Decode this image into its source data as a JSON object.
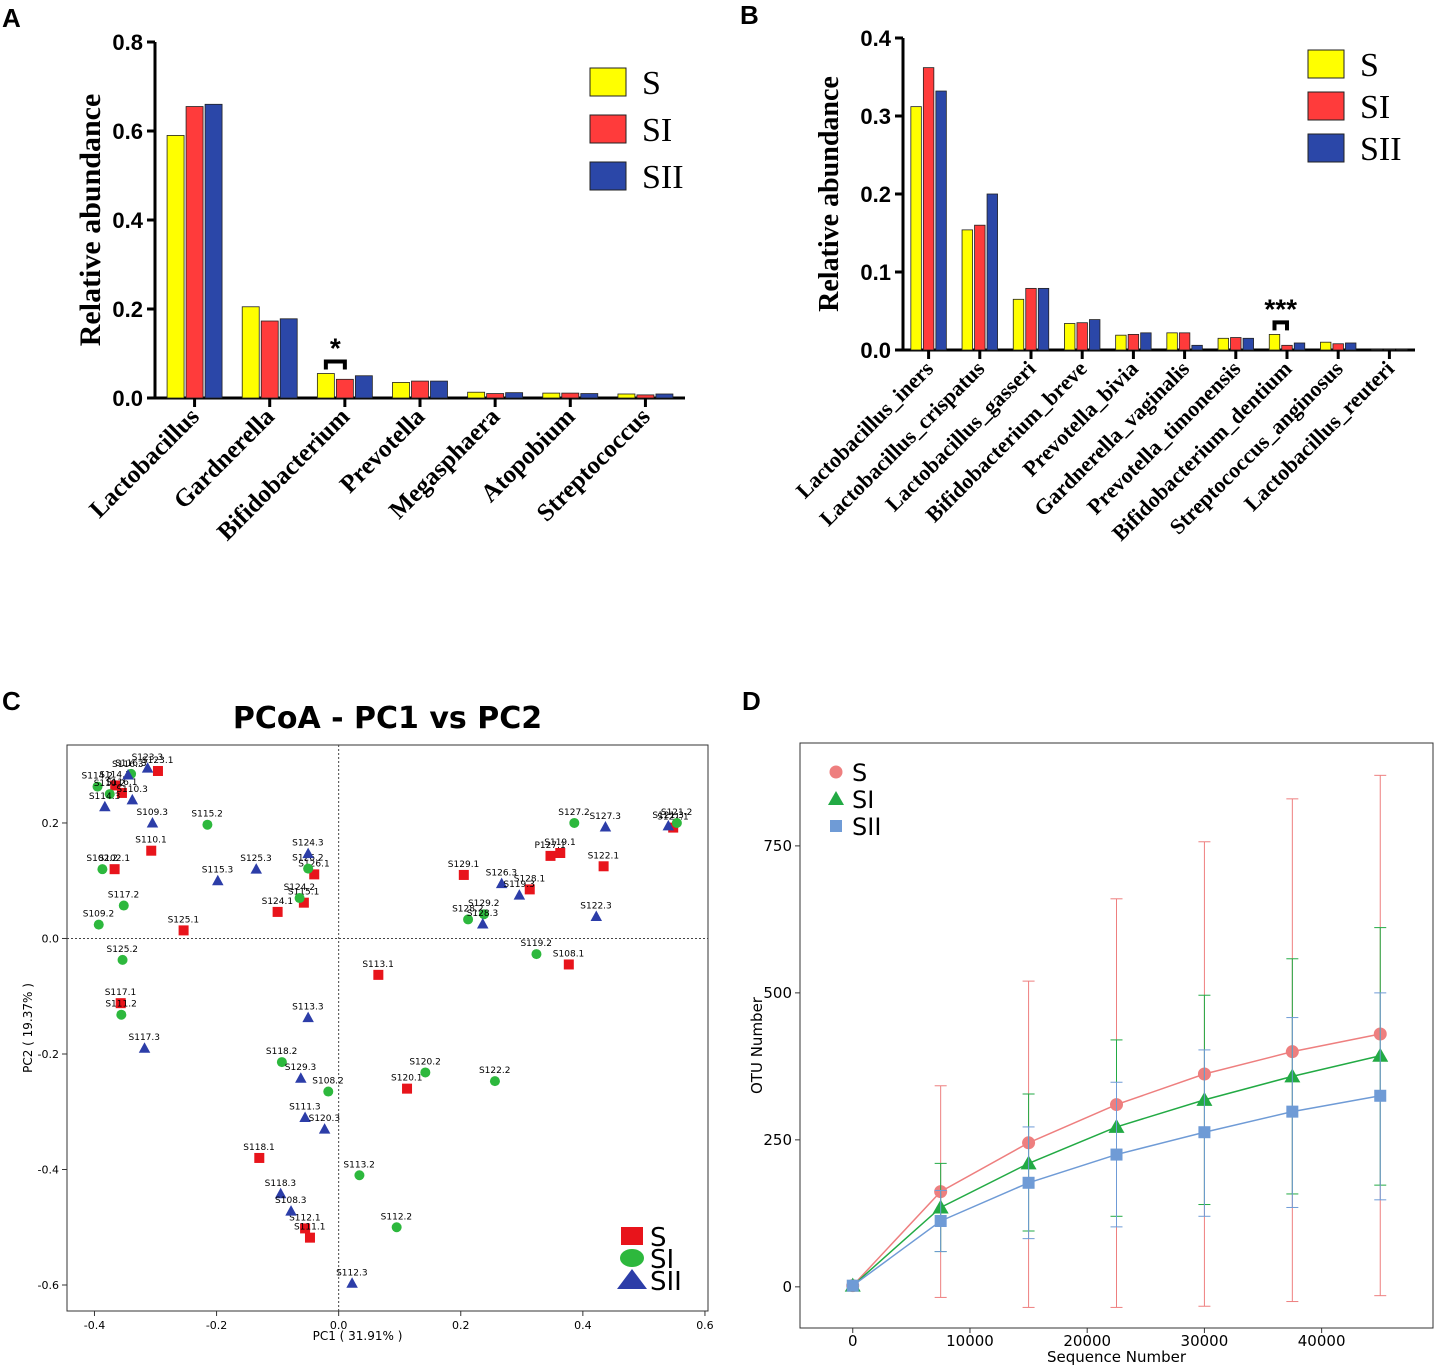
{
  "panels": {
    "A": "A",
    "B": "B",
    "C": "C",
    "D": "D"
  },
  "colors": {
    "S": "#ffff00",
    "SI": "#ff3b3b",
    "SII": "#2b47a8",
    "pcoa_S": "#e8141b",
    "pcoa_SI": "#2db83d",
    "pcoa_SII": "#2c3da8",
    "rare_S": "#ee7f7f",
    "rare_SI": "#22aa44",
    "rare_SII": "#6f9bd6"
  },
  "chart_data": [
    {
      "id": "A",
      "type": "bar",
      "ylabel": "Relative abundance",
      "ylim": [
        0,
        0.8
      ],
      "yticks": [
        "0.0",
        "0.2",
        "0.4",
        "0.6",
        "0.8"
      ],
      "categories": [
        "Lactobacillus",
        "Gardnerella",
        "Bifidobacterium",
        "Prevotella",
        "Megasphaera",
        "Atopobium",
        "Streptococcus"
      ],
      "series": [
        {
          "name": "S",
          "values": [
            0.59,
            0.205,
            0.055,
            0.035,
            0.013,
            0.011,
            0.009
          ]
        },
        {
          "name": "SI",
          "values": [
            0.655,
            0.173,
            0.042,
            0.038,
            0.01,
            0.011,
            0.007
          ]
        },
        {
          "name": "SII",
          "values": [
            0.66,
            0.178,
            0.05,
            0.038,
            0.012,
            0.01,
            0.009
          ]
        }
      ],
      "annotations": [
        {
          "category": "Bifidobacterium",
          "text": "*"
        }
      ],
      "legend": [
        "S",
        "SI",
        "SII"
      ],
      "legend_position": "top-right"
    },
    {
      "id": "B",
      "type": "bar",
      "ylabel": "Relative abundance",
      "ylim": [
        0,
        0.4
      ],
      "yticks": [
        "0.0",
        "0.1",
        "0.2",
        "0.3",
        "0.4"
      ],
      "categories": [
        "Lactobacillus_iners",
        "Lactobacillus_crispatus",
        "Lactobacillus_gasseri",
        "Bifidobacterium_breve",
        "Prevotella_bivia",
        "Gardnerella_vaginalis",
        "Prevotella_timonensis",
        "Bifidobacterium_dentium",
        "Streptococcus_anginosus",
        "Lactobacillus_reuteri"
      ],
      "series": [
        {
          "name": "S",
          "values": [
            0.312,
            0.154,
            0.065,
            0.034,
            0.019,
            0.022,
            0.015,
            0.02,
            0.01,
            0.001
          ]
        },
        {
          "name": "SI",
          "values": [
            0.362,
            0.16,
            0.079,
            0.035,
            0.02,
            0.022,
            0.016,
            0.006,
            0.008,
            0.001
          ]
        },
        {
          "name": "SII",
          "values": [
            0.332,
            0.2,
            0.079,
            0.039,
            0.022,
            0.006,
            0.015,
            0.009,
            0.009,
            0.001
          ]
        }
      ],
      "annotations": [
        {
          "category": "Bifidobacterium_dentium",
          "text": "***"
        }
      ],
      "legend": [
        "S",
        "SI",
        "SII"
      ],
      "legend_position": "top-right"
    },
    {
      "id": "C",
      "type": "scatter",
      "title": "PCoA - PC1 vs PC2",
      "xlabel": "PC1 ( 31.91% )",
      "ylabel": "PC2 ( 19.37% )",
      "xlim": [
        -0.445,
        0.605
      ],
      "ylim": [
        -0.645,
        0.335
      ],
      "xticks": [
        -0.4,
        -0.2,
        0.0,
        0.2,
        0.4,
        0.6
      ],
      "xtick_labels": [
        "-0.4",
        "-0.2",
        "0.0",
        "0.2",
        "0.4",
        "0.6"
      ],
      "yticks": [
        -0.6,
        -0.4,
        -0.2,
        0.0,
        0.2
      ],
      "ytick_labels": [
        "-0.6",
        "-0.4",
        "-0.2",
        "0.0",
        "0.2"
      ],
      "legend": [
        "S",
        "SI",
        "SII"
      ],
      "legend_position": "bottom-right",
      "points": [
        {
          "label": "S123.1",
          "group": "S",
          "x": -0.296,
          "y": 0.29
        },
        {
          "label": "S110.1",
          "group": "S",
          "x": -0.307,
          "y": 0.152
        },
        {
          "label": "S102.1",
          "group": "S",
          "x": -0.367,
          "y": 0.12
        },
        {
          "label": "S125.1",
          "group": "S",
          "x": -0.254,
          "y": 0.014
        },
        {
          "label": "S124.1",
          "group": "S",
          "x": -0.1,
          "y": 0.046
        },
        {
          "label": "S115.1",
          "group": "S",
          "x": -0.057,
          "y": 0.062
        },
        {
          "label": "S126.1",
          "group": "S",
          "x": -0.04,
          "y": 0.111
        },
        {
          "label": "S117.1",
          "group": "S",
          "x": -0.357,
          "y": -0.112
        },
        {
          "label": "S113.1",
          "group": "S",
          "x": 0.065,
          "y": -0.063
        },
        {
          "label": "S120.1",
          "group": "S",
          "x": 0.112,
          "y": -0.26
        },
        {
          "label": "S118.1",
          "group": "S",
          "x": -0.13,
          "y": -0.38
        },
        {
          "label": "S112.1",
          "group": "S",
          "x": -0.055,
          "y": -0.502
        },
        {
          "label": "S111.1",
          "group": "S",
          "x": -0.047,
          "y": -0.518
        },
        {
          "label": "S129.1",
          "group": "S",
          "x": 0.205,
          "y": 0.11
        },
        {
          "label": "S119.1",
          "group": "S",
          "x": 0.363,
          "y": 0.148
        },
        {
          "label": "P127.1",
          "group": "S",
          "x": 0.347,
          "y": 0.143
        },
        {
          "label": "S128.1",
          "group": "S",
          "x": 0.313,
          "y": 0.085
        },
        {
          "label": "S122.1",
          "group": "S",
          "x": 0.434,
          "y": 0.125
        },
        {
          "label": "S108.1",
          "group": "S",
          "x": 0.377,
          "y": -0.045
        },
        {
          "label": "S121.1",
          "group": "S",
          "x": 0.548,
          "y": 0.192
        },
        {
          "label": "S114.1",
          "group": "S",
          "x": -0.366,
          "y": 0.265
        },
        {
          "label": "S116.1",
          "group": "S",
          "x": -0.355,
          "y": 0.252
        },
        {
          "label": "S116.3",
          "group": "SI",
          "x": -0.34,
          "y": 0.285
        },
        {
          "label": "S115.2",
          "group": "SI",
          "x": -0.215,
          "y": 0.197
        },
        {
          "label": "S102.2",
          "group": "SI",
          "x": -0.387,
          "y": 0.12
        },
        {
          "label": "S117.2",
          "group": "SI",
          "x": -0.352,
          "y": 0.057
        },
        {
          "label": "S109.2",
          "group": "SI",
          "x": -0.393,
          "y": 0.024
        },
        {
          "label": "S125.2",
          "group": "SI",
          "x": -0.354,
          "y": -0.037
        },
        {
          "label": "S111.2",
          "group": "SI",
          "x": -0.356,
          "y": -0.132
        },
        {
          "label": "S126.2",
          "group": "SI",
          "x": -0.05,
          "y": 0.121
        },
        {
          "label": "S124.2",
          "group": "SI",
          "x": -0.064,
          "y": 0.07
        },
        {
          "label": "S118.2",
          "group": "SI",
          "x": -0.093,
          "y": -0.214
        },
        {
          "label": "S108.2",
          "group": "SI",
          "x": -0.017,
          "y": -0.265
        },
        {
          "label": "S120.2",
          "group": "SI",
          "x": 0.142,
          "y": -0.232
        },
        {
          "label": "S122.2",
          "group": "SI",
          "x": 0.256,
          "y": -0.247
        },
        {
          "label": "S113.2",
          "group": "SI",
          "x": 0.034,
          "y": -0.41
        },
        {
          "label": "S112.2",
          "group": "SI",
          "x": 0.095,
          "y": -0.5
        },
        {
          "label": "S127.2",
          "group": "SI",
          "x": 0.386,
          "y": 0.2
        },
        {
          "label": "S128.2",
          "group": "SI",
          "x": 0.212,
          "y": 0.033
        },
        {
          "label": "S129.2",
          "group": "SI",
          "x": 0.238,
          "y": 0.042
        },
        {
          "label": "S119.2",
          "group": "SI",
          "x": 0.324,
          "y": -0.027
        },
        {
          "label": "S121.2",
          "group": "SI",
          "x": 0.554,
          "y": 0.2
        },
        {
          "label": "S114.2",
          "group": "SI",
          "x": -0.395,
          "y": 0.263
        },
        {
          "label": "S110.2",
          "group": "SI",
          "x": -0.375,
          "y": 0.25
        },
        {
          "label": "S110.3",
          "group": "SII",
          "x": -0.338,
          "y": 0.24
        },
        {
          "label": "S114.3",
          "group": "SII",
          "x": -0.383,
          "y": 0.228
        },
        {
          "label": "S109.3",
          "group": "SII",
          "x": -0.305,
          "y": 0.2
        },
        {
          "label": "S116.3",
          "group": "SII",
          "x": -0.345,
          "y": 0.283
        },
        {
          "label": "S115.3",
          "group": "SII",
          "x": -0.198,
          "y": 0.1
        },
        {
          "label": "S125.3",
          "group": "SII",
          "x": -0.135,
          "y": 0.12
        },
        {
          "label": "S124.3",
          "group": "SII",
          "x": -0.05,
          "y": 0.147
        },
        {
          "label": "S117.3",
          "group": "SII",
          "x": -0.318,
          "y": -0.19
        },
        {
          "label": "S113.3",
          "group": "SII",
          "x": -0.05,
          "y": -0.137
        },
        {
          "label": "S129.3",
          "group": "SII",
          "x": -0.062,
          "y": -0.242
        },
        {
          "label": "S111.3",
          "group": "SII",
          "x": -0.055,
          "y": -0.31
        },
        {
          "label": "S120.3",
          "group": "SII",
          "x": -0.023,
          "y": -0.33
        },
        {
          "label": "S118.3",
          "group": "SII",
          "x": -0.095,
          "y": -0.442
        },
        {
          "label": "S108.3",
          "group": "SII",
          "x": -0.078,
          "y": -0.472
        },
        {
          "label": "S112.3",
          "group": "SII",
          "x": 0.022,
          "y": -0.597
        },
        {
          "label": "S126.3",
          "group": "SII",
          "x": 0.267,
          "y": 0.095
        },
        {
          "label": "S119.3",
          "group": "SII",
          "x": 0.296,
          "y": 0.075
        },
        {
          "label": "S128.3",
          "group": "SII",
          "x": 0.236,
          "y": 0.025
        },
        {
          "label": "S127.3",
          "group": "SII",
          "x": 0.437,
          "y": 0.193
        },
        {
          "label": "S122.3",
          "group": "SII",
          "x": 0.422,
          "y": 0.038
        },
        {
          "label": "S121.3",
          "group": "SII",
          "x": 0.54,
          "y": 0.195
        },
        {
          "label": "S123.3",
          "group": "SII",
          "x": -0.313,
          "y": 0.295
        }
      ]
    },
    {
      "id": "D",
      "type": "line",
      "xlabel": "Sequence Number",
      "ylabel": "OTU Number",
      "xlim": [
        -4500,
        49500
      ],
      "ylim": [
        -70,
        925
      ],
      "xticks": [
        0,
        10000,
        20000,
        30000,
        40000
      ],
      "xtick_labels": [
        "0",
        "10000",
        "20000",
        "30000",
        "40000"
      ],
      "yticks": [
        0,
        250,
        500,
        750
      ],
      "ytick_labels": [
        "0",
        "250",
        "500",
        "750"
      ],
      "x": [
        0,
        7500,
        15000,
        22500,
        30000,
        37500,
        45000
      ],
      "series": [
        {
          "name": "S",
          "marker": "circle",
          "values": [
            2,
            162,
            245,
            310,
            362,
            400,
            430
          ],
          "err_low": [
            2,
            180,
            280,
            345,
            395,
            425,
            445
          ],
          "err_high": [
            2,
            180,
            275,
            350,
            395,
            430,
            440
          ]
        },
        {
          "name": "SI",
          "marker": "triangle",
          "values": [
            2,
            135,
            210,
            272,
            318,
            358,
            393
          ],
          "err_low": [
            2,
            75,
            115,
            152,
            178,
            200,
            220
          ],
          "err_high": [
            2,
            75,
            118,
            148,
            178,
            200,
            218
          ]
        },
        {
          "name": "SII",
          "marker": "square",
          "values": [
            2,
            112,
            177,
            225,
            263,
            298,
            325
          ],
          "err_low": [
            2,
            52,
            95,
            123,
            143,
            163,
            177
          ],
          "err_high": [
            2,
            52,
            95,
            123,
            140,
            160,
            175
          ]
        }
      ],
      "legend": [
        "S",
        "SI",
        "SII"
      ],
      "legend_position": "top-left"
    }
  ]
}
